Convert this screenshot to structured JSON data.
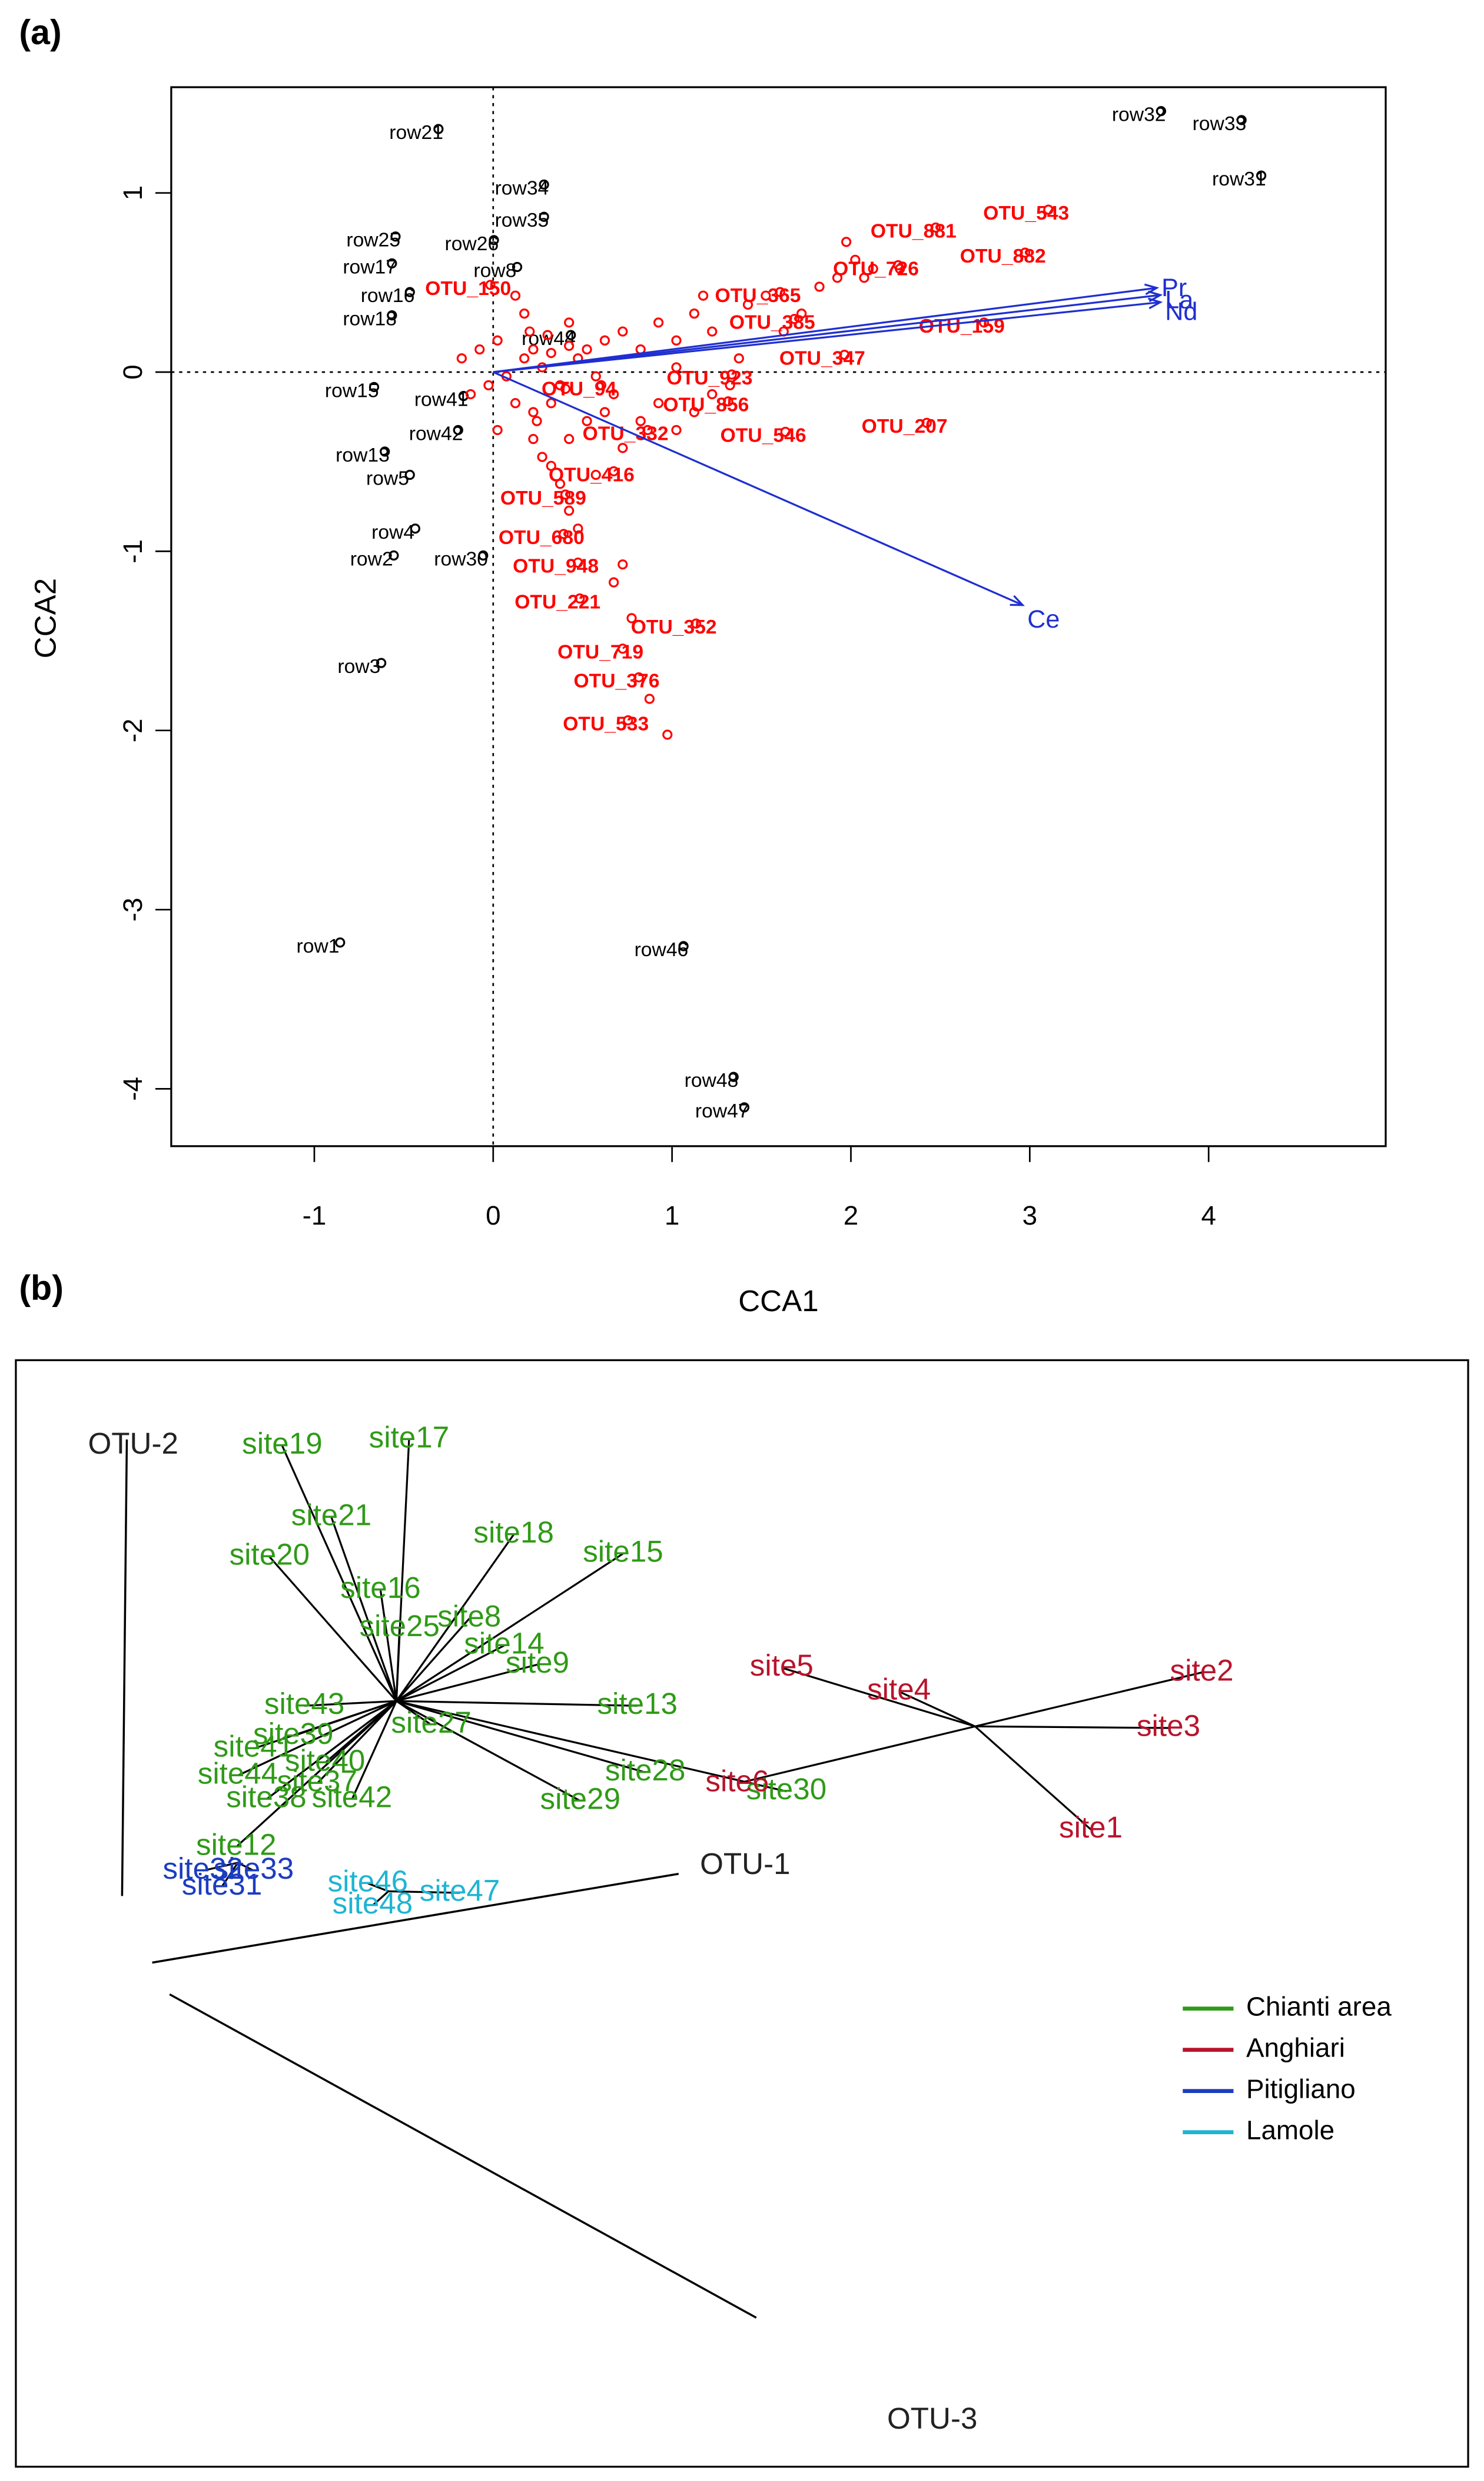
{
  "chart_data": [
    {
      "type": "scatter",
      "panel_label": "(a)",
      "xlabel": "CCA1",
      "ylabel": "CCA2",
      "xlim": [
        -1.8,
        4.99
      ],
      "ylim": [
        -4.32,
        1.59
      ],
      "xticks": [
        -1,
        0,
        1,
        2,
        3,
        4
      ],
      "yticks": [
        -4,
        -3,
        -2,
        -1,
        0,
        1
      ],
      "series": [
        {
          "color": "#000000",
          "labels": [
            "row21",
            "row32",
            "row33",
            "row31",
            "row34",
            "row35",
            "row25",
            "row26",
            "row17",
            "row8",
            "row16",
            "row18",
            "row44",
            "row15",
            "row41",
            "row42",
            "row13",
            "row5",
            "row4",
            "row2",
            "row30",
            "row3",
            "row1",
            "row46",
            "row48",
            "row47"
          ],
          "x": [
            -0.43,
            3.61,
            4.06,
            4.17,
            0.16,
            0.16,
            -0.67,
            -0.12,
            -0.69,
            0.01,
            -0.59,
            -0.69,
            0.31,
            -0.79,
            -0.29,
            -0.32,
            -0.73,
            -0.59,
            -0.56,
            -0.68,
            -0.18,
            -0.75,
            -0.98,
            0.94,
            1.22,
            1.28
          ],
          "y": [
            1.33,
            1.43,
            1.38,
            1.07,
            1.02,
            0.84,
            0.73,
            0.71,
            0.58,
            0.56,
            0.42,
            0.29,
            0.18,
            -0.11,
            -0.16,
            -0.35,
            -0.47,
            -0.6,
            -0.9,
            -1.05,
            -1.05,
            -1.65,
            -3.21,
            -3.23,
            -3.96,
            -4.13
          ]
        },
        {
          "color": "#ff0000",
          "labels": [
            "OTU_881",
            "OTU_543",
            "OTU_882",
            "OTU_726",
            "OTU_365",
            "OTU_385",
            "OTU_159",
            "OTU_347",
            "OTU_923",
            "OTU_856",
            "OTU_546",
            "OTU_207",
            "OTU_416",
            "OTU_589",
            "OTU_680",
            "OTU_948",
            "OTU_221",
            "OTU_352",
            "OTU_719",
            "OTU_376",
            "OTU_533",
            "OTU_150",
            "OTU_94",
            "OTU_332"
          ],
          "x": [
            2.35,
            2.98,
            2.85,
            2.14,
            1.48,
            1.56,
            2.62,
            1.84,
            1.21,
            1.19,
            1.51,
            2.3,
            0.55,
            0.28,
            0.27,
            0.35,
            0.36,
            1.01,
            0.6,
            0.69,
            0.63,
            -0.14,
            0.48,
            0.74
          ],
          "y": [
            0.78,
            0.88,
            0.64,
            0.57,
            0.42,
            0.27,
            0.25,
            0.07,
            -0.04,
            -0.19,
            -0.36,
            -0.31,
            -0.58,
            -0.71,
            -0.93,
            -1.09,
            -1.29,
            -1.43,
            -1.57,
            -1.73,
            -1.97,
            0.46,
            -0.1,
            -0.35
          ]
        },
        {
          "color": "#ff0000",
          "x": [
            0.05,
            0.1,
            -0.05,
            0.15,
            0.2,
            0.25,
            0.3,
            -0.1,
            0.0,
            0.08,
            0.12,
            -0.15,
            0.35,
            0.4,
            0.45,
            0.5,
            0.55,
            0.6,
            0.7,
            0.8,
            0.9,
            1.0,
            1.1,
            1.2,
            1.3,
            1.4,
            1.5,
            1.6,
            1.7,
            1.8,
            1.9,
            2.0,
            0.3,
            0.4,
            0.5,
            0.6,
            0.7,
            0.8,
            0.9,
            1.0,
            0.2,
            0.25,
            0.3,
            0.35,
            0.1,
            0.15,
            0.05,
            -0.2,
            -0.25,
            -0.3,
            0.6,
            0.65,
            1.1,
            1.25,
            0.45,
            0.55,
            0.75,
            0.85,
            1.85,
            1.95,
            2.15,
            0.9,
            1.05,
            0.2,
            0.3,
            0.0,
            -0.1,
            0.1,
            0.18,
            0.28
          ],
          "y": [
            0.05,
            0.1,
            -0.05,
            0.0,
            0.08,
            -0.1,
            0.12,
            0.15,
            -0.2,
            0.2,
            -0.3,
            -0.1,
            0.05,
            0.1,
            -0.05,
            0.15,
            -0.15,
            0.2,
            0.1,
            0.25,
            0.0,
            0.3,
            0.2,
            -0.1,
            0.35,
            0.4,
            0.2,
            0.3,
            0.45,
            0.5,
            0.6,
            0.55,
            -0.4,
            -0.3,
            -0.25,
            -0.45,
            -0.3,
            -0.2,
            -0.35,
            -0.25,
            -0.55,
            -0.65,
            -0.8,
            -0.9,
            -0.4,
            -0.5,
            0.3,
            0.1,
            -0.15,
            0.05,
            -1.1,
            -1.4,
            -0.15,
            0.05,
            -0.6,
            -1.2,
            -1.85,
            -2.05,
            0.7,
            0.5,
            0.55,
            0.15,
            0.4,
            -0.2,
            0.25,
            0.4,
            -0.35,
            -0.25,
            0.18,
            -0.12
          ]
        }
      ],
      "arrows": {
        "color": "#1f2fd0",
        "labels": [
          "Pr",
          "La",
          "Nd",
          "Ce"
        ],
        "x": [
          3.71,
          3.73,
          3.73,
          2.96
        ],
        "y": [
          0.47,
          0.43,
          0.39,
          -1.3
        ]
      }
    }
  ],
  "panel_b": {
    "panel_label": "(b)",
    "axes": [
      "OTU-1",
      "OTU-2",
      "OTU-3"
    ],
    "groups": [
      {
        "name": "Chianti area",
        "color": "#2f9a17",
        "sites": [
          "site19",
          "site17",
          "site21",
          "site20",
          "site18",
          "site15",
          "site16",
          "site25",
          "site8",
          "site14",
          "site9",
          "site13",
          "site27",
          "site28",
          "site29",
          "site30",
          "site43",
          "site12",
          "site42",
          "site40",
          "site41",
          "site44",
          "site39",
          "site38",
          "site37"
        ]
      },
      {
        "name": "Anghiari",
        "color": "#b8142c",
        "sites": [
          "site5",
          "site4",
          "site2",
          "site3",
          "site1",
          "site6"
        ]
      },
      {
        "name": "Pitigliano",
        "color": "#1c3cc0",
        "sites": [
          "site32",
          "site33",
          "site31"
        ]
      },
      {
        "name": "Lamole",
        "color": "#1fb4d2",
        "sites": [
          "site46",
          "site47",
          "site48"
        ]
      }
    ]
  }
}
